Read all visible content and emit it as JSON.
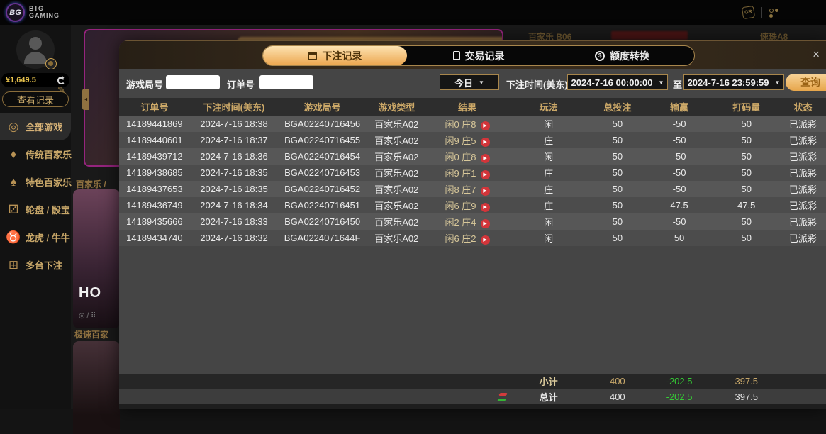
{
  "topbar": {
    "logo_text": "BG",
    "brand_line1": "BIG",
    "brand_line2": "GAMING"
  },
  "sidebar": {
    "balance": "¥1,649.5",
    "view_records_label": "查看记录",
    "menu": [
      {
        "label": "全部游戏",
        "icon": "all-games-icon",
        "glyph": "◎",
        "active": true
      },
      {
        "label": "传统百家乐",
        "icon": "classic-baccarat-icon",
        "glyph": "♦",
        "active": false
      },
      {
        "label": "特色百家乐",
        "icon": "special-baccarat-icon",
        "glyph": "♠",
        "active": false
      },
      {
        "label": "轮盘 / 骰宝",
        "icon": "roulette-dice-icon",
        "glyph": "⚂",
        "active": false
      },
      {
        "label": "龙虎 / 牛牛",
        "icon": "bull-icon",
        "glyph": "♉",
        "active": false
      },
      {
        "label": "多台下注",
        "icon": "multi-bet-icon",
        "glyph": "⊞",
        "active": false
      }
    ]
  },
  "background": {
    "section_label_1": "百家乐 /",
    "section_label_2": "极速百家",
    "hot_label": "HO",
    "card_meta": "◎ / ⠿",
    "table_label_left": "百家乐 B06",
    "table_label_right": "速珠A8",
    "carousel_arrow": "◄"
  },
  "modal": {
    "close_label": "×",
    "tabs": [
      {
        "label": "下注记录",
        "icon": "calendar-icon",
        "active": true
      },
      {
        "label": "交易记录",
        "icon": "receipt-icon",
        "active": false
      },
      {
        "label": "额度转换",
        "icon": "transfer-coin-icon",
        "active": false
      }
    ],
    "filters": {
      "round_label": "游戏局号",
      "round_value": "",
      "order_label": "订单号",
      "order_value": "",
      "range_value": "今日",
      "time_label": "下注时间(美东)",
      "time_from": "2024-7-16 00:00:00",
      "to_label": "至",
      "time_to": "2024-7-16 23:59:59",
      "search_label": "查询",
      "dropdown_arrow": "▼"
    },
    "table": {
      "columns": [
        "订单号",
        "下注时间(美东)",
        "游戏局号",
        "游戏类型",
        "结果",
        "玩法",
        "总投注",
        "输赢",
        "打码量",
        "状态"
      ],
      "rows": [
        {
          "order": "14189441869",
          "time": "2024-7-16 18:38",
          "round": "BGA02240716456",
          "game": "百家乐A02",
          "result": "闲0 庄8",
          "play": "闲",
          "bet": "50",
          "winloss": "-50",
          "winloss_color": "green",
          "turnover": "50",
          "status": "已派彩"
        },
        {
          "order": "14189440601",
          "time": "2024-7-16 18:37",
          "round": "BGA02240716455",
          "game": "百家乐A02",
          "result": "闲9 庄5",
          "play": "庄",
          "bet": "50",
          "winloss": "-50",
          "winloss_color": "green",
          "turnover": "50",
          "status": "已派彩"
        },
        {
          "order": "14189439712",
          "time": "2024-7-16 18:36",
          "round": "BGA02240716454",
          "game": "百家乐A02",
          "result": "闲0 庄8",
          "play": "闲",
          "bet": "50",
          "winloss": "-50",
          "winloss_color": "green",
          "turnover": "50",
          "status": "已派彩"
        },
        {
          "order": "14189438685",
          "time": "2024-7-16 18:35",
          "round": "BGA02240716453",
          "game": "百家乐A02",
          "result": "闲9 庄1",
          "play": "庄",
          "bet": "50",
          "winloss": "-50",
          "winloss_color": "green",
          "turnover": "50",
          "status": "已派彩"
        },
        {
          "order": "14189437653",
          "time": "2024-7-16 18:35",
          "round": "BGA02240716452",
          "game": "百家乐A02",
          "result": "闲8 庄7",
          "play": "庄",
          "bet": "50",
          "winloss": "-50",
          "winloss_color": "green",
          "turnover": "50",
          "status": "已派彩"
        },
        {
          "order": "14189436749",
          "time": "2024-7-16 18:34",
          "round": "BGA02240716451",
          "game": "百家乐A02",
          "result": "闲6 庄9",
          "play": "庄",
          "bet": "50",
          "winloss": "47.5",
          "winloss_color": "red",
          "turnover": "47.5",
          "status": "已派彩"
        },
        {
          "order": "14189435666",
          "time": "2024-7-16 18:33",
          "round": "BGA02240716450",
          "game": "百家乐A02",
          "result": "闲2 庄4",
          "play": "闲",
          "bet": "50",
          "winloss": "-50",
          "winloss_color": "green",
          "turnover": "50",
          "status": "已派彩"
        },
        {
          "order": "14189434740",
          "time": "2024-7-16 18:32",
          "round": "BGA0224071644F",
          "game": "百家乐A02",
          "result": "闲6 庄2",
          "play": "闲",
          "bet": "50",
          "winloss": "50",
          "winloss_color": "red",
          "turnover": "50",
          "status": "已派彩"
        }
      ]
    },
    "totals": {
      "subtotal_label": "小计",
      "subtotal": {
        "bet": "400",
        "winloss": "-202.5",
        "turnover": "397.5"
      },
      "total_label": "总计",
      "total": {
        "bet": "400",
        "winloss": "-202.5",
        "turnover": "397.5"
      }
    }
  },
  "colors": {
    "accent_gold": "#d9a95e",
    "win_red": "#c04545",
    "loss_green": "#35cd35",
    "modal_bg": "#454545"
  }
}
